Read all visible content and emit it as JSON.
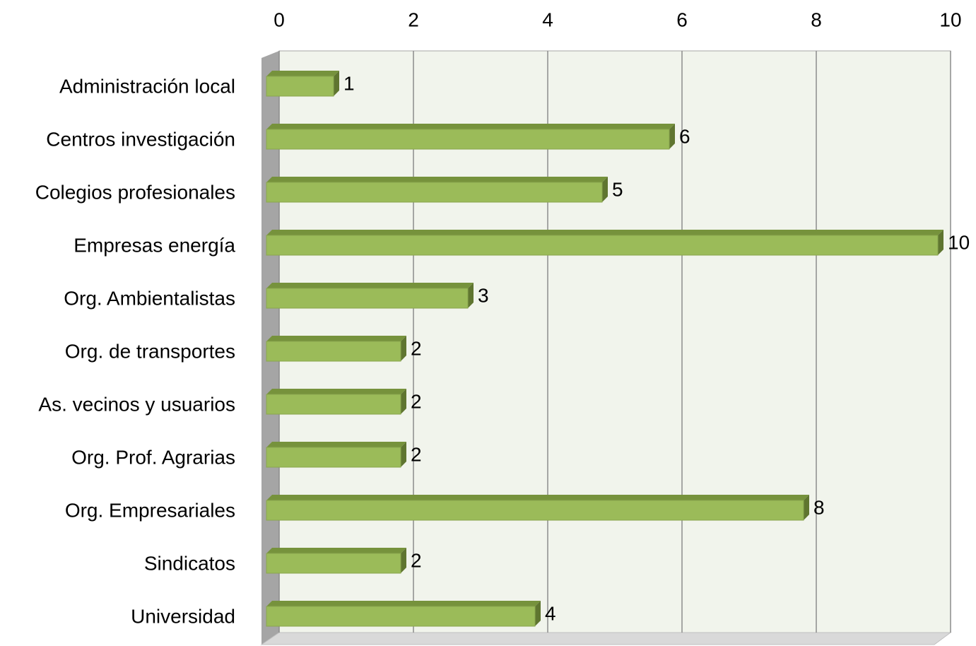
{
  "chart_data": {
    "type": "bar",
    "orientation": "horizontal",
    "categories": [
      "Administración local",
      "Centros investigación",
      "Colegios profesionales",
      "Empresas energía",
      "Org. Ambientalistas",
      "Org. de transportes",
      "As. vecinos y usuarios",
      "Org. Prof. Agrarias",
      "Org. Empresariales",
      "Sindicatos",
      "Universidad"
    ],
    "values": [
      1,
      6,
      5,
      10,
      3,
      2,
      2,
      2,
      8,
      2,
      4
    ],
    "color": "#9bbb59",
    "xlim": [
      0,
      10
    ],
    "xticks": [
      0,
      2,
      4,
      6,
      8,
      10
    ],
    "grid": true
  }
}
